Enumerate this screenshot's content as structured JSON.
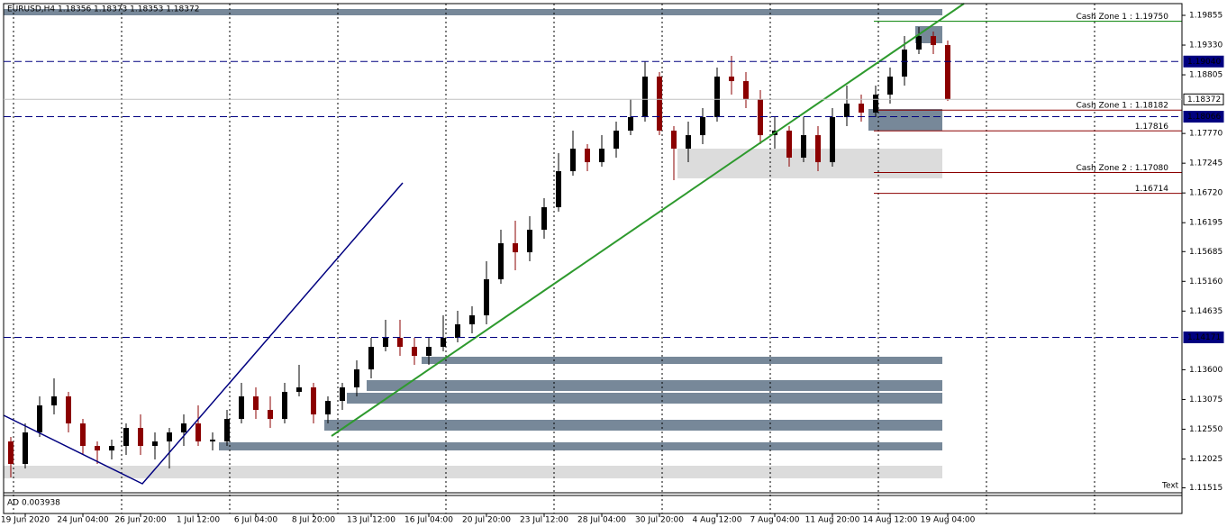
{
  "chart_data": {
    "type": "candlestick",
    "title": "EURUSD,H4  1.18356 1.18373 1.18353 1.18372",
    "corner_text": "Text",
    "indicator_label": "AD 0.003938",
    "up_color": "#000000",
    "down_color": "#8b0000",
    "categories": [
      null,
      "19 Jun 2020",
      null,
      null,
      null,
      "24 Jun 04:00",
      null,
      null,
      null,
      "26 Jun 20:00",
      null,
      null,
      null,
      "1 Jul 12:00",
      null,
      null,
      null,
      "6 Jul 04:00",
      null,
      null,
      null,
      "8 Jul 20:00",
      null,
      null,
      null,
      "13 Jul 12:00",
      null,
      null,
      null,
      "16 Jul 04:00",
      null,
      null,
      null,
      "20 Jul 20:00",
      null,
      null,
      null,
      "23 Jul 12:00",
      null,
      null,
      null,
      "28 Jul 04:00",
      null,
      null,
      null,
      "30 Jul 20:00",
      null,
      null,
      null,
      "4 Aug 12:00",
      null,
      null,
      null,
      "7 Aug 04:00",
      null,
      null,
      null,
      "11 Aug 20:00",
      null,
      null,
      null,
      "14 Aug 12:00",
      null,
      null,
      null,
      "19 Aug 04:00"
    ],
    "open": [
      1.12334,
      1.11937,
      1.12493,
      1.1297,
      1.13129,
      1.12652,
      1.12255,
      1.12175,
      1.12255,
      1.12573,
      1.12255,
      1.12334,
      1.12493,
      1.12652,
      1.12334,
      1.12334,
      1.12732,
      1.13129,
      1.12891,
      1.12732,
      1.13209,
      1.13288,
      1.12811,
      1.1305,
      1.13288,
      1.13606,
      1.14004,
      1.14163,
      1.14004,
      1.13845,
      1.14004,
      1.14163,
      1.14401,
      1.1456,
      1.15196,
      1.15832,
      1.15673,
      1.16071,
      1.16468,
      1.17104,
      1.17502,
      1.17263,
      1.17502,
      1.1782,
      1.18058,
      1.18774,
      1.1782,
      1.17502,
      1.1774,
      1.18058,
      1.18774,
      1.18694,
      1.18376,
      1.1774,
      1.1782,
      1.17343,
      1.1774,
      1.17263,
      1.18058,
      1.18297,
      1.18138,
      1.18456,
      1.18774,
      1.19251,
      1.19489,
      1.1933
    ],
    "high": [
      1.12414,
      1.12652,
      1.13129,
      1.13447,
      1.13209,
      1.12732,
      1.12334,
      1.12366,
      1.12652,
      1.12811,
      1.12493,
      1.12573,
      1.12811,
      1.1297,
      1.12493,
      1.12891,
      1.13368,
      1.13288,
      1.13129,
      1.13368,
      1.13686,
      1.13368,
      1.13129,
      1.13368,
      1.13765,
      1.14163,
      1.14481,
      1.14481,
      1.14163,
      1.14163,
      1.1456,
      1.1464,
      1.14719,
      1.15514,
      1.16071,
      1.1623,
      1.16309,
      1.16627,
      1.17422,
      1.1782,
      1.17581,
      1.1774,
      1.17979,
      1.18376,
      1.19044,
      1.18853,
      1.17899,
      1.17979,
      1.18217,
      1.18933,
      1.19139,
      1.18853,
      1.18535,
      1.18058,
      1.17899,
      1.18058,
      1.17899,
      1.18217,
      1.18615,
      1.18456,
      1.18615,
      1.18933,
      1.19489,
      1.19648,
      1.19569,
      1.1941
    ],
    "low": [
      1.11698,
      1.11857,
      1.12414,
      1.12811,
      1.12493,
      1.12096,
      1.11937,
      1.12016,
      1.12096,
      1.12096,
      1.12016,
      1.11857,
      1.12255,
      1.12255,
      1.12175,
      1.12255,
      1.12652,
      1.12732,
      1.12573,
      1.12652,
      1.13129,
      1.12652,
      1.12652,
      1.12891,
      1.13129,
      1.13447,
      1.13924,
      1.13845,
      1.13686,
      1.13686,
      1.13924,
      1.14083,
      1.14242,
      1.14401,
      1.15117,
      1.15355,
      1.15514,
      1.15912,
      1.16389,
      1.17025,
      1.17104,
      1.17184,
      1.17343,
      1.1774,
      1.17979,
      1.1774,
      1.16945,
      1.17263,
      1.17581,
      1.17979,
      1.18456,
      1.18217,
      1.17581,
      1.17502,
      1.17184,
      1.17263,
      1.17104,
      1.17184,
      1.17899,
      1.17979,
      1.18058,
      1.18297,
      1.18615,
      1.19171,
      1.19171,
      1.18344
    ],
    "close": [
      1.11937,
      1.12493,
      1.1297,
      1.13129,
      1.12652,
      1.12255,
      1.12175,
      1.12255,
      1.12573,
      1.12255,
      1.12334,
      1.12493,
      1.12652,
      1.12334,
      1.12366,
      1.12732,
      1.13129,
      1.12891,
      1.12732,
      1.13209,
      1.13288,
      1.12811,
      1.1305,
      1.13288,
      1.13606,
      1.14004,
      1.14163,
      1.14004,
      1.13845,
      1.14004,
      1.14163,
      1.14401,
      1.1456,
      1.15196,
      1.15832,
      1.15673,
      1.16071,
      1.16468,
      1.17104,
      1.17502,
      1.17263,
      1.17502,
      1.1782,
      1.18058,
      1.18774,
      1.1782,
      1.17502,
      1.1774,
      1.18058,
      1.18774,
      1.18694,
      1.18376,
      1.1774,
      1.1782,
      1.17343,
      1.1774,
      1.17263,
      1.18058,
      1.18297,
      1.18138,
      1.18456,
      1.18774,
      1.19251,
      1.19489,
      1.1933,
      1.18372
    ],
    "ylim": [
      1.1146,
      1.20062
    ],
    "yticks": [
      1.19855,
      {
        "value": 1.1933,
        "label": "1.19330"
      },
      1.18805,
      {
        "value": 1.1777,
        "label": "1.17770"
      },
      1.17245,
      {
        "value": 1.1672,
        "label": "1.16720"
      },
      1.16195,
      1.15685,
      {
        "value": 1.1516,
        "label": "1.15160"
      },
      1.14635,
      {
        "value": 1.136,
        "label": "1.13600"
      },
      1.13075,
      {
        "value": 1.1255,
        "label": "1.12550"
      },
      1.12025,
      1.11515
    ],
    "price_lines": [
      {
        "value": 1.1904,
        "label": "1.19040",
        "color": "#000080",
        "dashed": true
      },
      {
        "value": 1.18372,
        "label": "1.18372",
        "color": "#c0c0c0",
        "dashed": false
      },
      {
        "value": 1.18066,
        "label": "1.18066",
        "color": "#000080",
        "dashed": true
      },
      {
        "value": 1.14171,
        "label": "1.14171",
        "color": "#000080",
        "dashed": true
      }
    ],
    "levels": [
      {
        "value": 1.1975,
        "label": "Cash Zone 1 : 1.19750",
        "color": "#008000"
      },
      {
        "value": 1.18182,
        "label": "Cash Zone 1 : 1.18182",
        "color": "#8b0000"
      },
      {
        "value": 1.17816,
        "label": "1.17816",
        "color": "#8b0000"
      },
      {
        "value": 1.1708,
        "label": "Cash Zone 2 : 1.17080",
        "color": "#8b0000"
      },
      {
        "value": 1.16714,
        "label": "1.16714",
        "color": "#8b0000"
      }
    ]
  }
}
